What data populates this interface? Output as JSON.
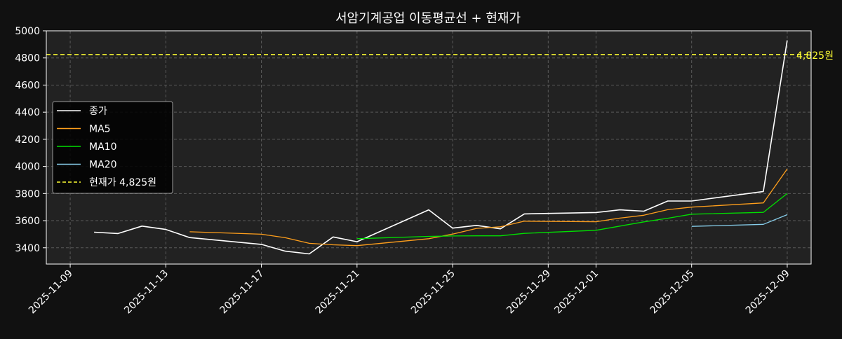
{
  "chart_data": {
    "type": "line",
    "title": "서암기계공업 이동평균선 + 현재가",
    "xlabel": "",
    "ylabel": "",
    "x_range": [
      "2025-11-08",
      "2025-12-10"
    ],
    "ylim": [
      3280,
      5000
    ],
    "y_ticks": [
      3400,
      3600,
      3800,
      4000,
      4200,
      4400,
      4600,
      4800,
      5000
    ],
    "x_ticks": [
      "2025-11-09",
      "2025-11-13",
      "2025-11-17",
      "2025-11-21",
      "2025-11-25",
      "2025-11-29",
      "2025-12-01",
      "2025-12-05",
      "2025-12-09"
    ],
    "grid": true,
    "legend_position": "left",
    "colors": {
      "background": "#111111",
      "plot_background": "#222222",
      "text": "#ffffff",
      "grid": "#5a5a5a"
    },
    "series": [
      {
        "name": "종가",
        "color": "#ffffff",
        "points": [
          [
            "2025-11-10",
            3515
          ],
          [
            "2025-11-11",
            3505
          ],
          [
            "2025-11-12",
            3560
          ],
          [
            "2025-11-13",
            3535
          ],
          [
            "2025-11-14",
            3475
          ],
          [
            "2025-11-17",
            3425
          ],
          [
            "2025-11-18",
            3375
          ],
          [
            "2025-11-19",
            3355
          ],
          [
            "2025-11-20",
            3480
          ],
          [
            "2025-11-21",
            3445
          ],
          [
            "2025-11-24",
            3680
          ],
          [
            "2025-11-25",
            3545
          ],
          [
            "2025-11-26",
            3565
          ],
          [
            "2025-11-27",
            3540
          ],
          [
            "2025-11-28",
            3650
          ],
          [
            "2025-12-01",
            3660
          ],
          [
            "2025-12-02",
            3680
          ],
          [
            "2025-12-03",
            3670
          ],
          [
            "2025-12-04",
            3745
          ],
          [
            "2025-12-05",
            3745
          ],
          [
            "2025-12-08",
            3815
          ],
          [
            "2025-12-09",
            4930
          ]
        ]
      },
      {
        "name": "MA5",
        "color": "#ff9f1c",
        "points": [
          [
            "2025-11-14",
            3518
          ],
          [
            "2025-11-17",
            3500
          ],
          [
            "2025-11-18",
            3474
          ],
          [
            "2025-11-19",
            3433
          ],
          [
            "2025-11-20",
            3422
          ],
          [
            "2025-11-21",
            3416
          ],
          [
            "2025-11-24",
            3467
          ],
          [
            "2025-11-25",
            3501
          ],
          [
            "2025-11-26",
            3543
          ],
          [
            "2025-11-27",
            3555
          ],
          [
            "2025-11-28",
            3596
          ],
          [
            "2025-12-01",
            3592
          ],
          [
            "2025-12-02",
            3619
          ],
          [
            "2025-12-03",
            3640
          ],
          [
            "2025-12-04",
            3681
          ],
          [
            "2025-12-05",
            3700
          ],
          [
            "2025-12-08",
            3731
          ],
          [
            "2025-12-09",
            3981
          ]
        ]
      },
      {
        "name": "MA10",
        "color": "#00e000",
        "points": [
          [
            "2025-11-21",
            3467
          ],
          [
            "2025-11-24",
            3484
          ],
          [
            "2025-11-25",
            3487
          ],
          [
            "2025-11-26",
            3488
          ],
          [
            "2025-11-27",
            3488
          ],
          [
            "2025-11-28",
            3506
          ],
          [
            "2025-12-01",
            3529
          ],
          [
            "2025-12-02",
            3560
          ],
          [
            "2025-12-03",
            3591
          ],
          [
            "2025-12-04",
            3618
          ],
          [
            "2025-12-05",
            3648
          ],
          [
            "2025-12-08",
            3661
          ],
          [
            "2025-12-09",
            3800
          ]
        ]
      },
      {
        "name": "MA20",
        "color": "#87ceeb",
        "points": [
          [
            "2025-12-05",
            3558
          ],
          [
            "2025-12-08",
            3573
          ],
          [
            "2025-12-09",
            3644
          ]
        ]
      }
    ],
    "hline": {
      "name": "현재가 4,825원",
      "value": 4825,
      "color": "#ffff33",
      "label": "4,825원"
    }
  }
}
